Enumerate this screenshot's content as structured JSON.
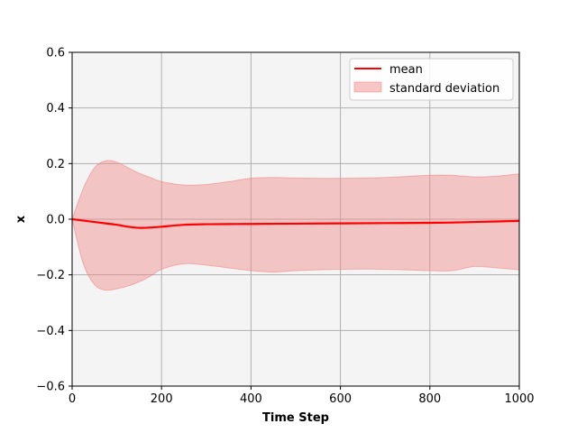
{
  "chart_data": {
    "type": "line",
    "title": "",
    "xlabel": "Time Step",
    "ylabel": "x",
    "xlim": [
      0,
      1000
    ],
    "ylim": [
      -0.6,
      0.6
    ],
    "x_ticks": [
      "0",
      "200",
      "400",
      "600",
      "800",
      "1000"
    ],
    "y_ticks": [
      "0.6",
      "0.4",
      "0.2",
      "0.0",
      "−0.2",
      "−0.4",
      "−0.6"
    ],
    "grid": true,
    "legend_position": "top-right",
    "background_color": "#f4f4f4",
    "series": [
      {
        "name": "mean",
        "kind": "line",
        "color": "#ff0000",
        "x": [
          0,
          25,
          50,
          75,
          100,
          125,
          150,
          175,
          200,
          250,
          300,
          400,
          500,
          600,
          700,
          800,
          850,
          900,
          950,
          1000
        ],
        "y": [
          0.0,
          -0.005,
          -0.01,
          -0.015,
          -0.02,
          -0.027,
          -0.031,
          -0.03,
          -0.027,
          -0.02,
          -0.018,
          -0.017,
          -0.016,
          -0.015,
          -0.014,
          -0.013,
          -0.012,
          -0.01,
          -0.008,
          -0.006
        ]
      },
      {
        "name": "standard deviation",
        "kind": "band",
        "color": "#f08080",
        "x": [
          0,
          25,
          50,
          75,
          100,
          125,
          150,
          175,
          200,
          250,
          300,
          350,
          400,
          450,
          500,
          600,
          700,
          800,
          850,
          900,
          950,
          1000
        ],
        "upper": [
          0.0,
          0.11,
          0.185,
          0.21,
          0.205,
          0.185,
          0.165,
          0.15,
          0.135,
          0.123,
          0.125,
          0.135,
          0.147,
          0.15,
          0.148,
          0.147,
          0.15,
          0.158,
          0.158,
          0.152,
          0.155,
          0.163
        ],
        "lower": [
          0.0,
          -0.16,
          -0.235,
          -0.255,
          -0.25,
          -0.24,
          -0.225,
          -0.205,
          -0.18,
          -0.16,
          -0.165,
          -0.175,
          -0.185,
          -0.19,
          -0.185,
          -0.18,
          -0.18,
          -0.185,
          -0.185,
          -0.17,
          -0.175,
          -0.182
        ]
      }
    ]
  }
}
